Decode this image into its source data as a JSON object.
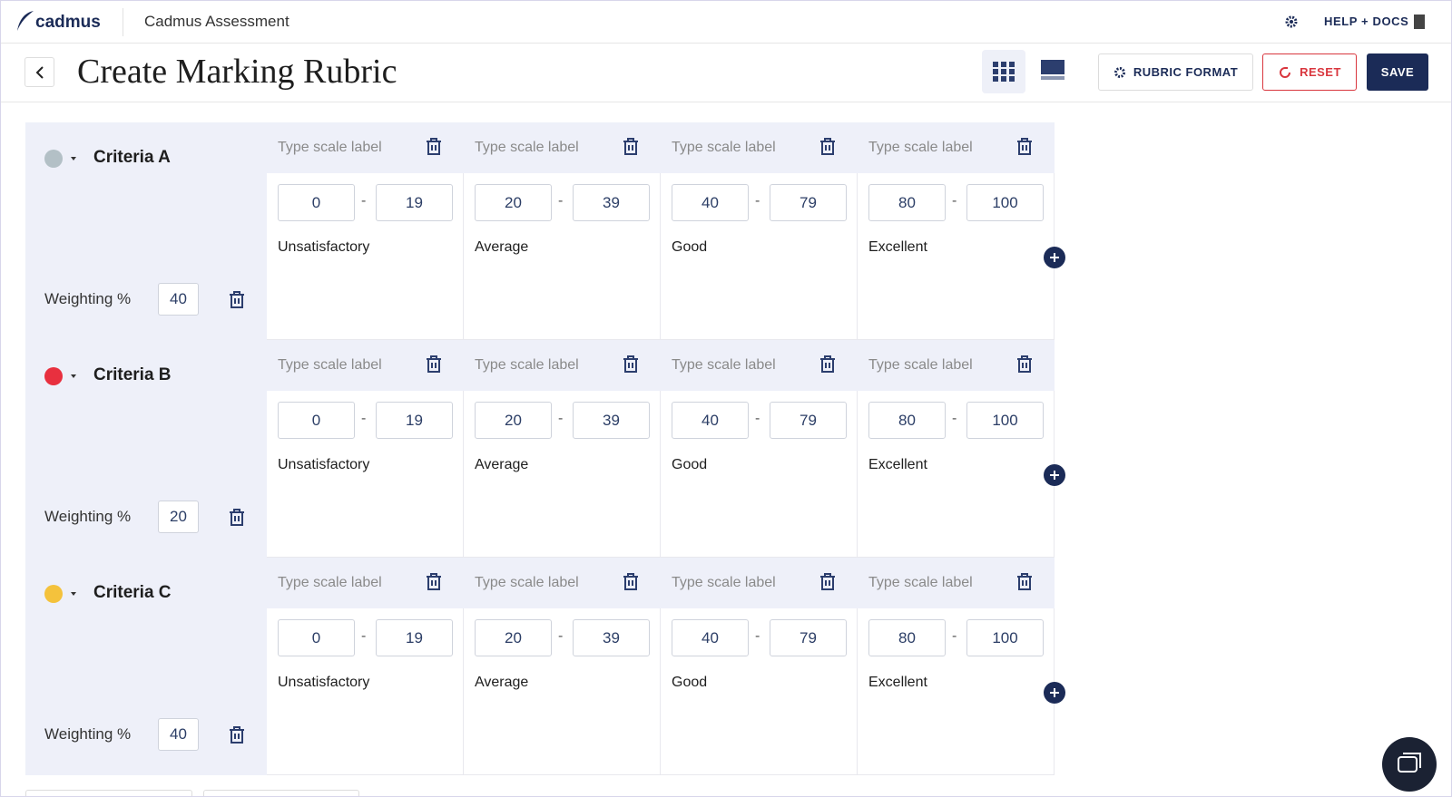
{
  "header": {
    "brand": "cadmus",
    "app_title": "Cadmus Assessment",
    "help": "HELP + DOCS"
  },
  "toolbar": {
    "title": "Create Marking Rubric",
    "rubric_format": "RUBRIC FORMAT",
    "reset": "RESET",
    "save": "SAVE"
  },
  "range_separator": "-",
  "criteria": [
    {
      "name": "Criteria A",
      "color": "#b3c0c6",
      "weighting_label": "Weighting %",
      "weighting": 40,
      "levels": [
        {
          "placeholder": "Type scale label",
          "min": 0,
          "max": 19,
          "label": "Unsatisfactory"
        },
        {
          "placeholder": "Type scale label",
          "min": 20,
          "max": 39,
          "label": "Average"
        },
        {
          "placeholder": "Type scale label",
          "min": 40,
          "max": 79,
          "label": "Good"
        },
        {
          "placeholder": "Type scale label",
          "min": 80,
          "max": 100,
          "label": "Excellent"
        }
      ]
    },
    {
      "name": "Criteria B",
      "color": "#e8303f",
      "weighting_label": "Weighting %",
      "weighting": 20,
      "levels": [
        {
          "placeholder": "Type scale label",
          "min": 0,
          "max": 19,
          "label": "Unsatisfactory"
        },
        {
          "placeholder": "Type scale label",
          "min": 20,
          "max": 39,
          "label": "Average"
        },
        {
          "placeholder": "Type scale label",
          "min": 40,
          "max": 79,
          "label": "Good"
        },
        {
          "placeholder": "Type scale label",
          "min": 80,
          "max": 100,
          "label": "Excellent"
        }
      ]
    },
    {
      "name": "Criteria C",
      "color": "#f4c23c",
      "weighting_label": "Weighting %",
      "weighting": 40,
      "levels": [
        {
          "placeholder": "Type scale label",
          "min": 0,
          "max": 19,
          "label": "Unsatisfactory"
        },
        {
          "placeholder": "Type scale label",
          "min": 20,
          "max": 39,
          "label": "Average"
        },
        {
          "placeholder": "Type scale label",
          "min": 40,
          "max": 79,
          "label": "Good"
        },
        {
          "placeholder": "Type scale label",
          "min": 80,
          "max": 100,
          "label": "Excellent"
        }
      ]
    }
  ]
}
